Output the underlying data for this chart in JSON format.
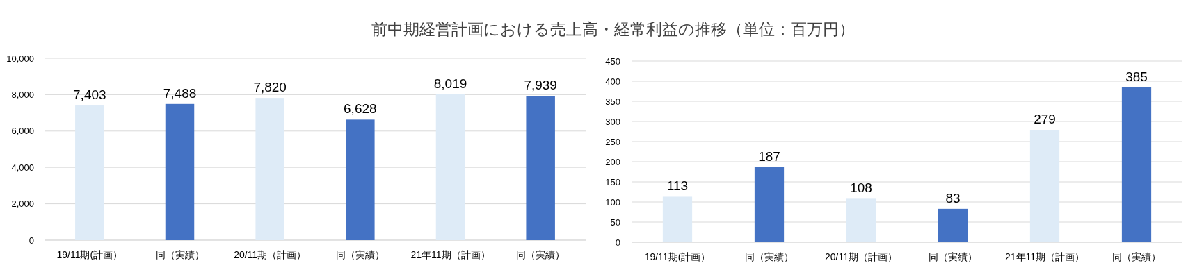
{
  "chart_data": [
    {
      "type": "bar",
      "title": "前中期経営計画における売上高・経常利益の推移（単位：百万円）",
      "categories": [
        "19/11期(計画）",
        "同（実績）",
        "20/11期（計画）",
        "同（実績）",
        "21年11期（計画）",
        "同（実績）"
      ],
      "values": [
        7403,
        7488,
        7820,
        6628,
        8019,
        7939
      ],
      "colors": [
        "#deebf7",
        "#4472c4",
        "#deebf7",
        "#4472c4",
        "#deebf7",
        "#4472c4"
      ],
      "value_labels": [
        "7,403",
        "7,488",
        "7,820",
        "6,628",
        "8,019",
        "7,939"
      ],
      "ylim": [
        0,
        10000
      ],
      "yticks": [
        {
          "value": 0,
          "label": "0"
        },
        {
          "value": 2000,
          "label": "2,000"
        },
        {
          "value": 4000,
          "label": "4,000"
        },
        {
          "value": 6000,
          "label": "6,000"
        },
        {
          "value": 8000,
          "label": "8,000"
        },
        {
          "value": 10000,
          "label": "10,000"
        }
      ],
      "grid": "y"
    },
    {
      "type": "bar",
      "categories": [
        "19/11期(計画）",
        "同（実績）",
        "20/11期（計画）",
        "同（実績）",
        "21年11期（計画）",
        "同（実績）"
      ],
      "values": [
        113,
        187,
        108,
        83,
        279,
        385
      ],
      "colors": [
        "#deebf7",
        "#4472c4",
        "#deebf7",
        "#4472c4",
        "#deebf7",
        "#4472c4"
      ],
      "data_labels": true,
      "ylim": [
        0,
        450
      ],
      "yticks": [
        0,
        50,
        100,
        150,
        200,
        250,
        300,
        350,
        400,
        450
      ],
      "grid": "y"
    }
  ]
}
